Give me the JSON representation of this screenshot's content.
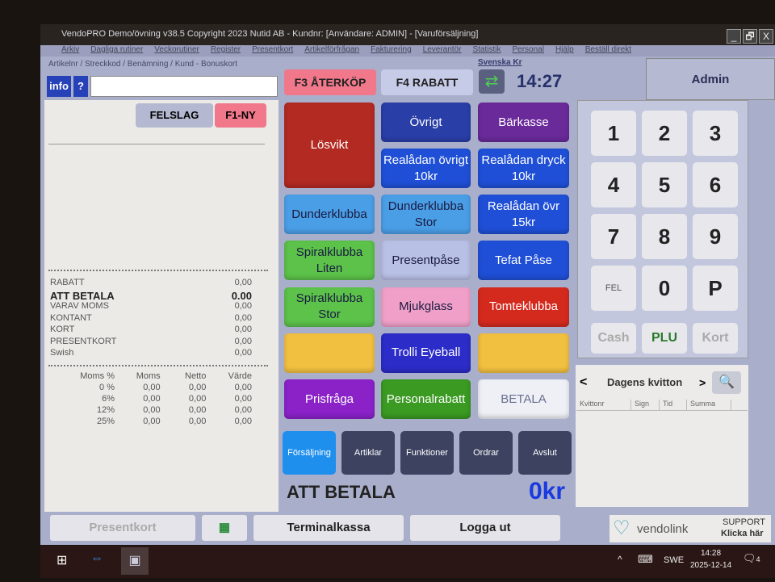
{
  "window": {
    "title": "VendoPRO Demo/övning v38.5 Copyright 2023 Nutid AB -  Kundnr:  [Användare: ADMIN] - [Varuförsäljning]",
    "controls": [
      "_",
      "🗗",
      "X"
    ]
  },
  "menu": [
    "Arkiv",
    "Dagliga rutiner",
    "Veckorutiner",
    "Register",
    "Presentkort",
    "Artikelförfrågan",
    "Fakturering",
    "Leverantör",
    "Statistik",
    "Personal",
    "Hjälp",
    "Beställ direkt"
  ],
  "search": {
    "hint": "Artikelnr / Streckkod / Benämning / Kund - Bonuskort",
    "value": "",
    "info": "info",
    "help": "?"
  },
  "top": {
    "f3": "F3 ÅTERKÖP",
    "f4": "F4 RABATT",
    "currency": "Svenska Kr",
    "time": "14:27",
    "user": "Admin"
  },
  "receipt": {
    "felslag": "FELSLAG",
    "f1": "F1-NY",
    "totals": [
      {
        "label": "RABATT",
        "value": "0,00"
      },
      {
        "label": "ATT BETALA",
        "value": "0.00"
      },
      {
        "label": "VARAV MOMS",
        "value": "0,00"
      },
      {
        "label": "KONTANT",
        "value": "0,00"
      },
      {
        "label": "KORT",
        "value": "0,00"
      },
      {
        "label": "PRESENTKORT",
        "value": "0,00"
      },
      {
        "label": "Swish",
        "value": "0,00"
      }
    ],
    "vat_header": [
      "Moms %",
      "Moms",
      "Netto",
      "Värde"
    ],
    "vat_rows": [
      [
        "0 %",
        "0,00",
        "0,00",
        "0,00"
      ],
      [
        "6%",
        "0,00",
        "0,00",
        "0,00"
      ],
      [
        "12%",
        "0,00",
        "0,00",
        "0,00"
      ],
      [
        "25%",
        "0,00",
        "0,00",
        "0,00"
      ]
    ]
  },
  "products": [
    {
      "label": "Lösvikt",
      "color": "#b32a22"
    },
    {
      "label": "Övrigt",
      "color": "#2a3ea8"
    },
    {
      "label": "Bärkasse",
      "color": "#6a2a9a"
    },
    {
      "label": "Realådan övrigt 10kr",
      "color": "#1f4fd6"
    },
    {
      "label": "Realådan dryck 10kr",
      "color": "#1f4fd6"
    },
    {
      "label": "Dunderklubba",
      "color": "#4a9ee6"
    },
    {
      "label": "Dunderklubba Stor",
      "color": "#4a9ee6"
    },
    {
      "label": "Realådan övr 15kr",
      "color": "#1f4fd6"
    },
    {
      "label": "Spiralklubba Liten",
      "color": "#5cc24a"
    },
    {
      "label": "Presentpåse",
      "color": "#b9c0e6"
    },
    {
      "label": "Tefat Påse",
      "color": "#1f4fd6"
    },
    {
      "label": "Spiralklubba Stor",
      "color": "#5cc24a"
    },
    {
      "label": "Mjukglass",
      "color": "#f0a0c8"
    },
    {
      "label": "Tomteklubba",
      "color": "#d42a1e"
    },
    {
      "label": "",
      "color": "#f2c040"
    },
    {
      "label": "Trolli Eyeball",
      "color": "#2c2cc8"
    },
    {
      "label": "",
      "color": "#f2c040"
    },
    {
      "label": "Prisfråga",
      "color": "#8a22c8"
    },
    {
      "label": "Personalrabatt",
      "color": "#3a9a22"
    },
    {
      "label": "BETALA",
      "color": "#eef0f6"
    }
  ],
  "nav": [
    "Försäljning",
    "Artiklar",
    "Funktioner",
    "Ordrar",
    "Avslut"
  ],
  "total": {
    "label": "ATT BETALA",
    "value": "0kr"
  },
  "numpad": [
    "1",
    "2",
    "3",
    "4",
    "5",
    "6",
    "7",
    "8",
    "9",
    "FEL",
    "0",
    "P"
  ],
  "paytypes": [
    "Cash",
    "PLU",
    "Kort"
  ],
  "receipts": {
    "title": "Dagens kvitton",
    "prev": "<",
    "next": ">",
    "columns": [
      "Kvittonr",
      "Sign",
      "Tid",
      "Summa"
    ]
  },
  "bottom": {
    "presentkort": "Presentkort",
    "terminal": "Terminalkassa",
    "logout": "Logga ut",
    "brand": "vendolink",
    "support": "SUPPORT",
    "support2": "Klicka här"
  },
  "taskbar": {
    "lang": "SWE",
    "time": "14:28",
    "date": "2025-12-14",
    "notifications": "4"
  }
}
